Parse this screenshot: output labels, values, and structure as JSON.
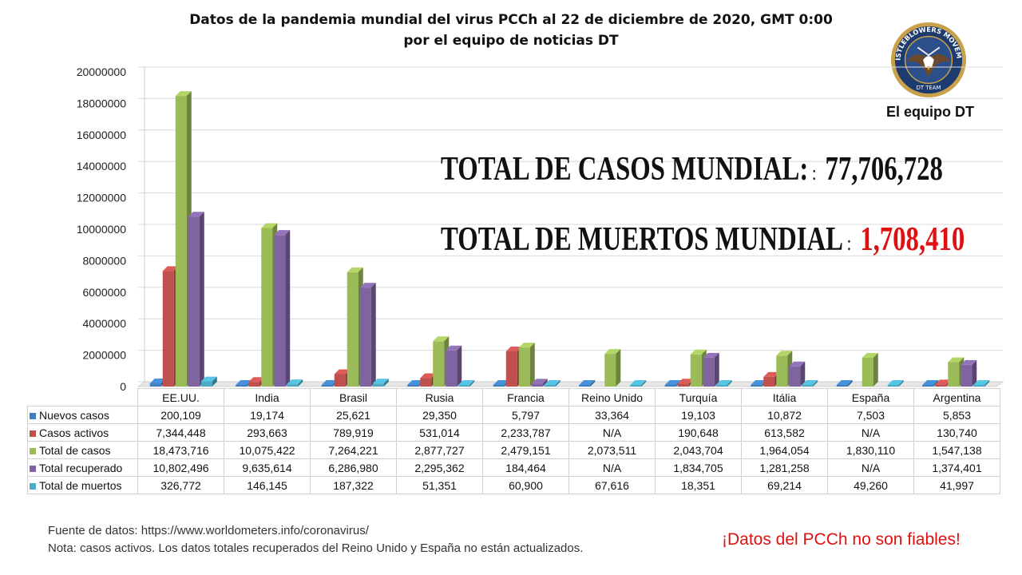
{
  "title_line1": "Datos de la pandemia mundial del virus PCCh al 22 de diciembre de 2020, GMT 0:00",
  "title_line2": "por el equipo de noticias DT",
  "logo": {
    "ring_text_top": "WHISTLEBLOWERS MOVEMENT",
    "ring_text_bottom": "DT TEAM"
  },
  "team_label": "El equipo DT",
  "total_cases_label": "TOTAL DE CASOS  MUNDIAL:",
  "total_cases_sep": ":",
  "total_cases_value": "77,706,728",
  "total_deaths_label": "TOTAL DE MUERTOS  MUNDIAL",
  "total_deaths_sep": ":",
  "total_deaths_value": "1,708,410",
  "source_line1": "Fuente de datos: https://www.worldometers.info/coronavirus/",
  "source_line2": "Nota: casos activos. Los datos totales recuperados del Reino Unido y España no están  actualizados.",
  "warning": "¡Datos del PCCh no son fiables!",
  "colors": {
    "nuevos": "#3d7fbf",
    "activos": "#c0504d",
    "total": "#9bbb59",
    "recuperado": "#8064a2",
    "muertos": "#4bacc6",
    "grid": "#d9d9d9",
    "red_accent": "#e01010"
  },
  "chart_data": {
    "type": "bar",
    "ylim": [
      0,
      20000000
    ],
    "yticks": [
      "0",
      "2000000",
      "4000000",
      "6000000",
      "8000000",
      "10000000",
      "12000000",
      "14000000",
      "16000000",
      "18000000",
      "20000000"
    ],
    "grid": true,
    "categories": [
      "EE.UU.",
      "India",
      "Brasil",
      "Rusia",
      "Francia",
      "Reino Unido",
      "Turquía",
      "Itália",
      "España",
      "Argentina"
    ],
    "series": [
      {
        "name": "Nuevos casos",
        "color_key": "nuevos",
        "values": [
          200109,
          19174,
          25621,
          29350,
          5797,
          33364,
          19103,
          10872,
          7503,
          5853
        ],
        "labels": [
          "200,109",
          "19,174",
          "25,621",
          "29,350",
          "5,797",
          "33,364",
          "19,103",
          "10,872",
          "7,503",
          "5,853"
        ]
      },
      {
        "name": "Casos activos",
        "color_key": "activos",
        "values": [
          7344448,
          293663,
          789919,
          531014,
          2233787,
          null,
          190648,
          613582,
          null,
          130740
        ],
        "labels": [
          "7,344,448",
          "293,663",
          "789,919",
          "531,014",
          "2,233,787",
          "N/A",
          "190,648",
          "613,582",
          "N/A",
          "130,740"
        ]
      },
      {
        "name": "Total de casos",
        "color_key": "total",
        "values": [
          18473716,
          10075422,
          7264221,
          2877727,
          2479151,
          2073511,
          2043704,
          1964054,
          1830110,
          1547138
        ],
        "labels": [
          "18,473,716",
          "10,075,422",
          "7,264,221",
          "2,877,727",
          "2,479,151",
          "2,073,511",
          "2,043,704",
          "1,964,054",
          "1,830,110",
          "1,547,138"
        ]
      },
      {
        "name": "Total recuperado",
        "color_key": "recuperado",
        "values": [
          10802496,
          9635614,
          6286980,
          2295362,
          184464,
          null,
          1834705,
          1281258,
          null,
          1374401
        ],
        "labels": [
          "10,802,496",
          "9,635,614",
          "6,286,980",
          "2,295,362",
          "184,464",
          "N/A",
          "1,834,705",
          "1,281,258",
          "N/A",
          "1,374,401"
        ]
      },
      {
        "name": "Total de muertos",
        "color_key": "muertos",
        "values": [
          326772,
          146145,
          187322,
          51351,
          60900,
          67616,
          18351,
          69214,
          49260,
          41997
        ],
        "labels": [
          "326,772",
          "146,145",
          "187,322",
          "51,351",
          "60,900",
          "67,616",
          "18,351",
          "69,214",
          "49,260",
          "41,997"
        ]
      }
    ]
  }
}
